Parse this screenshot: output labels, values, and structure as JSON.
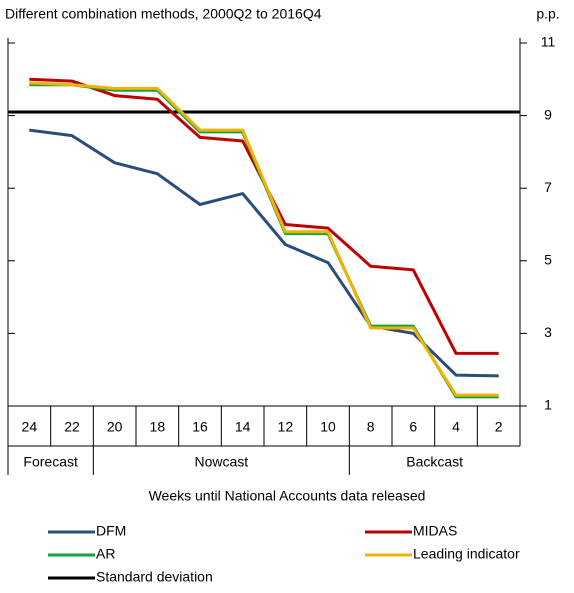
{
  "chart_data": {
    "type": "line",
    "title": "Different combination methods, 2000Q2 to 2016Q4",
    "y_unit": "p.p.",
    "x_label": "Weeks until National Accounts data released",
    "categories": [
      "24",
      "22",
      "20",
      "18",
      "16",
      "14",
      "12",
      "10",
      "8",
      "6",
      "4",
      "2"
    ],
    "groups": [
      {
        "label": "Forecast",
        "count": 2
      },
      {
        "label": "Nowcast",
        "count": 6
      },
      {
        "label": "Backcast",
        "count": 4
      }
    ],
    "ylim": [
      1,
      11
    ],
    "yticks": [
      1,
      3,
      5,
      7,
      9,
      11
    ],
    "series": [
      {
        "name": "DFM",
        "color": "#2a4d7e",
        "values": [
          8.6,
          8.45,
          7.7,
          7.4,
          6.55,
          6.85,
          5.45,
          4.95,
          3.2,
          3.0,
          1.85,
          1.83
        ]
      },
      {
        "name": "MIDAS",
        "color": "#c00000",
        "values": [
          10.0,
          9.95,
          9.55,
          9.45,
          8.4,
          8.3,
          6.0,
          5.9,
          4.85,
          4.75,
          2.45,
          2.45
        ]
      },
      {
        "name": "AR",
        "color": "#13a04a",
        "values": [
          9.85,
          9.85,
          9.7,
          9.7,
          8.55,
          8.55,
          5.75,
          5.75,
          3.2,
          3.2,
          1.25,
          1.25
        ]
      },
      {
        "name": "Leading indicator",
        "color": "#f0b400",
        "values": [
          9.9,
          9.85,
          9.75,
          9.75,
          8.6,
          8.6,
          5.8,
          5.8,
          3.15,
          3.15,
          1.3,
          1.3
        ]
      }
    ],
    "reference_line": {
      "name": "Standard deviation",
      "value": 9.1,
      "color": "#000000"
    }
  }
}
